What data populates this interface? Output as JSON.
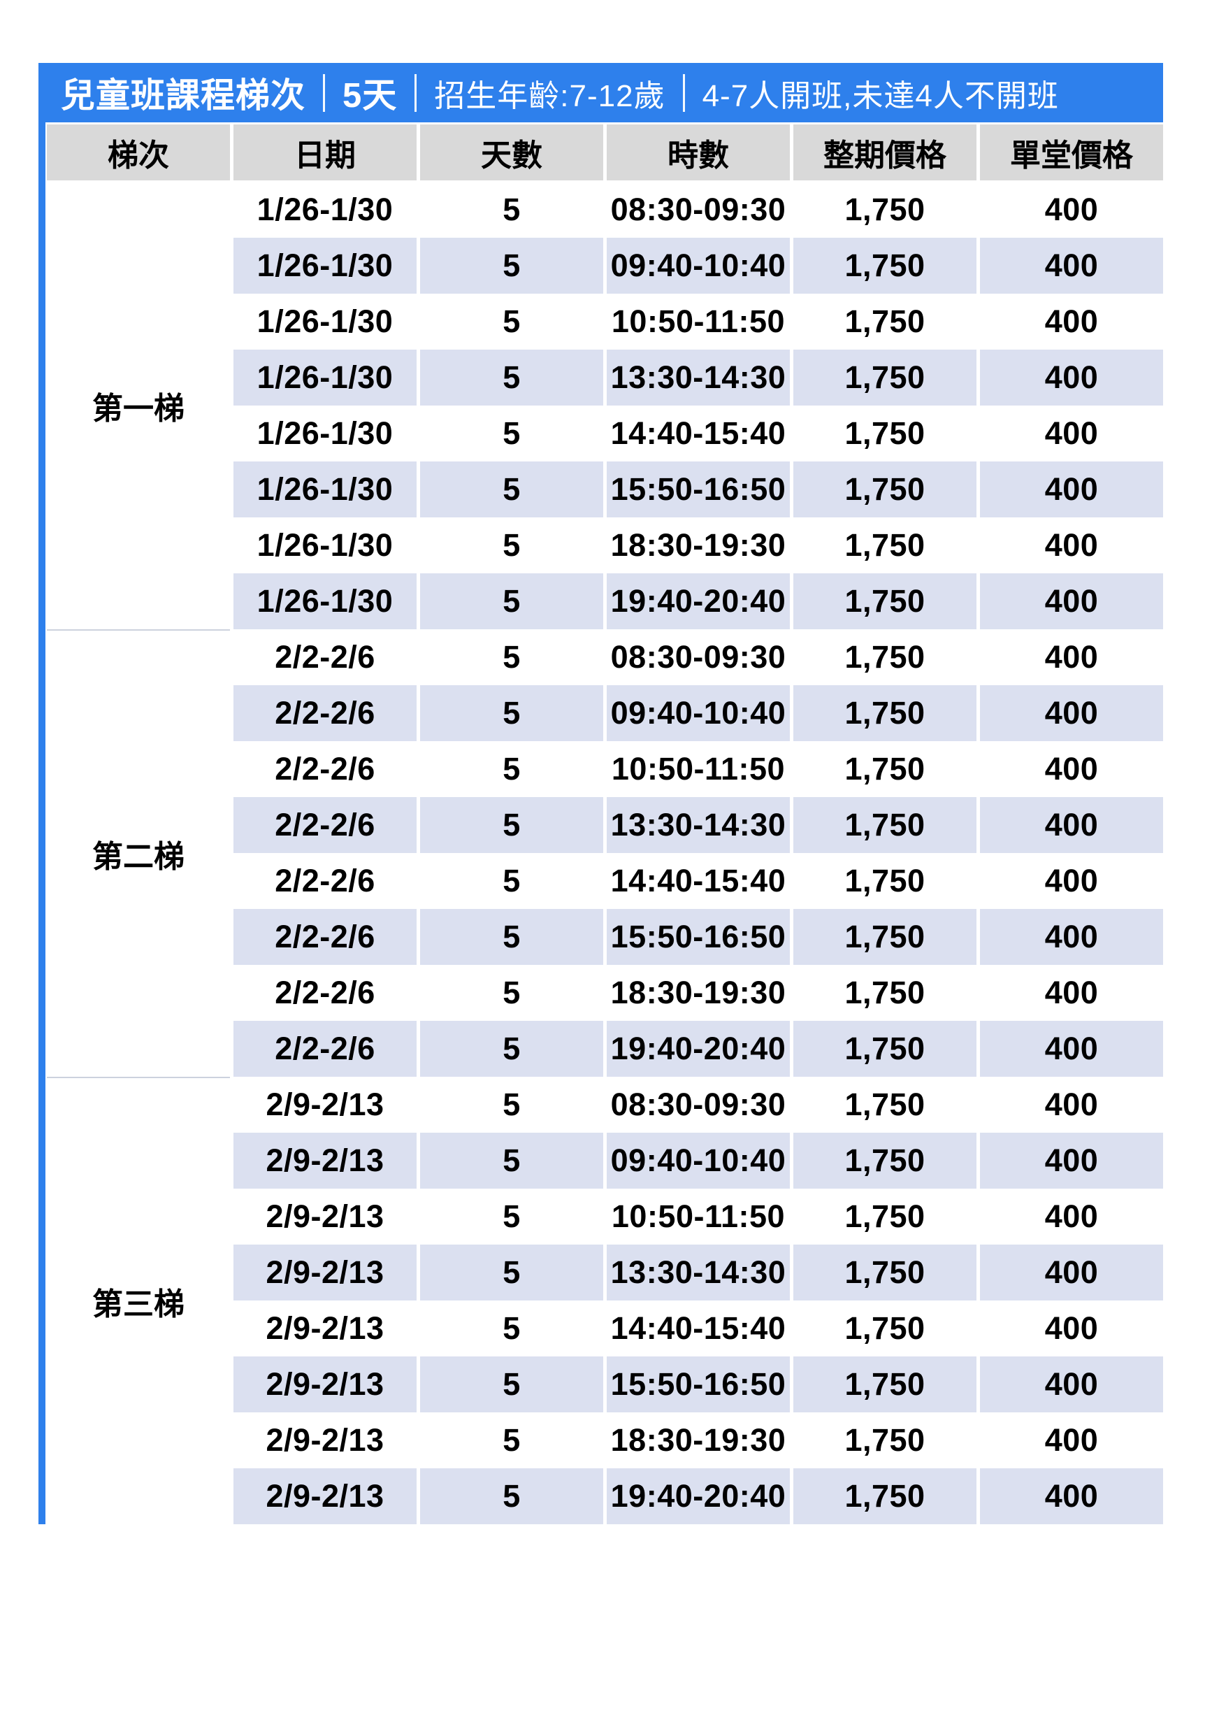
{
  "title_bar": {
    "course_name": "兒童班課程梯次",
    "duration": "5天",
    "age_range": "招生年齡:7-12歲",
    "class_note": "4-7人開班,未達4人不開班"
  },
  "columns": [
    "梯次",
    "日期",
    "天數",
    "時數",
    "整期價格",
    "單堂價格"
  ],
  "groups": [
    {
      "tier": "第一梯",
      "rows": [
        {
          "date": "1/26-1/30",
          "days": "5",
          "time": "08:30-09:30",
          "full_price": "1,750",
          "single_price": "400"
        },
        {
          "date": "1/26-1/30",
          "days": "5",
          "time": "09:40-10:40",
          "full_price": "1,750",
          "single_price": "400"
        },
        {
          "date": "1/26-1/30",
          "days": "5",
          "time": "10:50-11:50",
          "full_price": "1,750",
          "single_price": "400"
        },
        {
          "date": "1/26-1/30",
          "days": "5",
          "time": "13:30-14:30",
          "full_price": "1,750",
          "single_price": "400"
        },
        {
          "date": "1/26-1/30",
          "days": "5",
          "time": "14:40-15:40",
          "full_price": "1,750",
          "single_price": "400"
        },
        {
          "date": "1/26-1/30",
          "days": "5",
          "time": "15:50-16:50",
          "full_price": "1,750",
          "single_price": "400"
        },
        {
          "date": "1/26-1/30",
          "days": "5",
          "time": "18:30-19:30",
          "full_price": "1,750",
          "single_price": "400"
        },
        {
          "date": "1/26-1/30",
          "days": "5",
          "time": "19:40-20:40",
          "full_price": "1,750",
          "single_price": "400"
        }
      ]
    },
    {
      "tier": "第二梯",
      "rows": [
        {
          "date": "2/2-2/6",
          "days": "5",
          "time": "08:30-09:30",
          "full_price": "1,750",
          "single_price": "400"
        },
        {
          "date": "2/2-2/6",
          "days": "5",
          "time": "09:40-10:40",
          "full_price": "1,750",
          "single_price": "400"
        },
        {
          "date": "2/2-2/6",
          "days": "5",
          "time": "10:50-11:50",
          "full_price": "1,750",
          "single_price": "400"
        },
        {
          "date": "2/2-2/6",
          "days": "5",
          "time": "13:30-14:30",
          "full_price": "1,750",
          "single_price": "400"
        },
        {
          "date": "2/2-2/6",
          "days": "5",
          "time": "14:40-15:40",
          "full_price": "1,750",
          "single_price": "400"
        },
        {
          "date": "2/2-2/6",
          "days": "5",
          "time": "15:50-16:50",
          "full_price": "1,750",
          "single_price": "400"
        },
        {
          "date": "2/2-2/6",
          "days": "5",
          "time": "18:30-19:30",
          "full_price": "1,750",
          "single_price": "400"
        },
        {
          "date": "2/2-2/6",
          "days": "5",
          "time": "19:40-20:40",
          "full_price": "1,750",
          "single_price": "400"
        }
      ]
    },
    {
      "tier": "第三梯",
      "rows": [
        {
          "date": "2/9-2/13",
          "days": "5",
          "time": "08:30-09:30",
          "full_price": "1,750",
          "single_price": "400"
        },
        {
          "date": "2/9-2/13",
          "days": "5",
          "time": "09:40-10:40",
          "full_price": "1,750",
          "single_price": "400"
        },
        {
          "date": "2/9-2/13",
          "days": "5",
          "time": "10:50-11:50",
          "full_price": "1,750",
          "single_price": "400"
        },
        {
          "date": "2/9-2/13",
          "days": "5",
          "time": "13:30-14:30",
          "full_price": "1,750",
          "single_price": "400"
        },
        {
          "date": "2/9-2/13",
          "days": "5",
          "time": "14:40-15:40",
          "full_price": "1,750",
          "single_price": "400"
        },
        {
          "date": "2/9-2/13",
          "days": "5",
          "time": "15:50-16:50",
          "full_price": "1,750",
          "single_price": "400"
        },
        {
          "date": "2/9-2/13",
          "days": "5",
          "time": "18:30-19:30",
          "full_price": "1,750",
          "single_price": "400"
        },
        {
          "date": "2/9-2/13",
          "days": "5",
          "time": "19:40-20:40",
          "full_price": "1,750",
          "single_price": "400"
        }
      ]
    }
  ],
  "colors": {
    "accent_blue": "#2E80EC",
    "header_gray": "#D9D9D9",
    "stripe_lavender": "#DBE0F0",
    "group_divider": "#CCD2DE"
  }
}
